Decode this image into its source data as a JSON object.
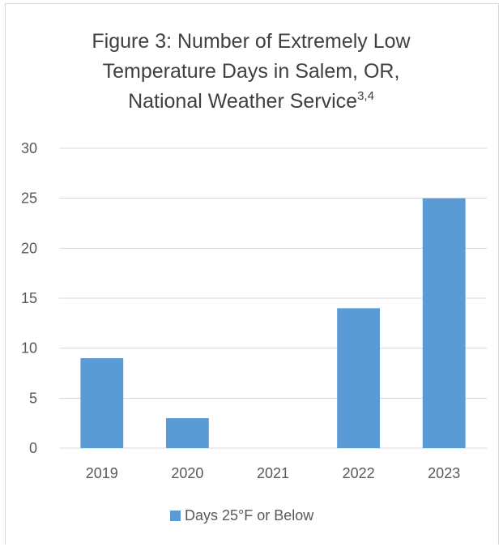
{
  "chart_data": {
    "type": "bar",
    "title_line1": "Figure 3: Number of Extremely Low",
    "title_line2": "Temperature Days in Salem, OR,",
    "title_line3": "National Weather Service",
    "title_superscript": "3,4",
    "categories": [
      "2019",
      "2020",
      "2021",
      "2022",
      "2023"
    ],
    "series": [
      {
        "name": "Days 25°F or Below",
        "values": [
          9,
          3,
          0,
          14,
          25
        ],
        "color": "#5b9bd5"
      }
    ],
    "ylim": [
      0,
      30
    ],
    "yticks": [
      0,
      5,
      10,
      15,
      20,
      25,
      30
    ],
    "grid": true,
    "legend_position": "bottom"
  }
}
